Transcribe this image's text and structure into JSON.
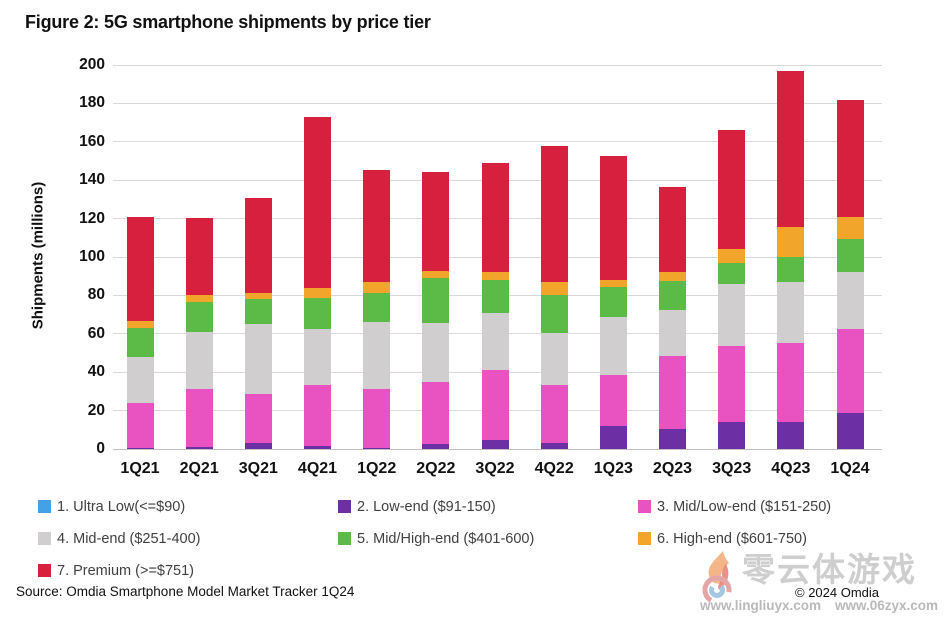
{
  "title": "Figure 2: 5G smartphone shipments by price tier",
  "source": "Source: Omdia Smartphone Model Market Tracker 1Q24",
  "copyright": "© 2024 Omdia",
  "watermark": {
    "logo": "flame-swirl-logo",
    "text": "零云体游戏",
    "url_1": "www.lingliuyx.com",
    "url_2": "www.06zyx.com"
  },
  "chart_data": {
    "type": "bar",
    "stacked": true,
    "title": "Figure 2: 5G smartphone shipments by price tier",
    "xlabel": "",
    "ylabel": "Shipments (millions)",
    "ylim": [
      0,
      200
    ],
    "ytick_step": 20,
    "grid": true,
    "legend_position": "bottom",
    "categories": [
      "1Q21",
      "2Q21",
      "3Q21",
      "4Q21",
      "1Q22",
      "2Q22",
      "3Q22",
      "4Q22",
      "1Q23",
      "2Q23",
      "3Q23",
      "4Q23",
      "1Q24"
    ],
    "series": [
      {
        "name": "1. Ultra Low(<=$90)",
        "color": "#44a1e4",
        "values": [
          0,
          0,
          0,
          0,
          0,
          0,
          0,
          0,
          0,
          0,
          0,
          0,
          0
        ]
      },
      {
        "name": "2. Low-end ($91-150)",
        "color": "#6d2fa4",
        "values": [
          0.5,
          1,
          3,
          1.5,
          0.5,
          2.5,
          4.5,
          3,
          12,
          10.5,
          14,
          14,
          19
        ]
      },
      {
        "name": "3. Mid/Low-end ($151-250)",
        "color": "#e852c1",
        "values": [
          23.5,
          30.5,
          25.5,
          32,
          30.5,
          32.5,
          36.5,
          30.5,
          26.5,
          38,
          39.5,
          41,
          43.5
        ]
      },
      {
        "name": "4. Mid-end ($251-400)",
        "color": "#d0cece",
        "values": [
          24,
          29.5,
          36.5,
          29,
          35,
          30.5,
          30,
          27,
          30,
          24,
          32.5,
          32,
          29.5
        ]
      },
      {
        "name": "5. Mid/High-end ($401-600)",
        "color": "#5cbb46",
        "values": [
          15,
          15.5,
          13,
          16,
          15.5,
          23.5,
          17,
          19.5,
          16,
          15,
          11,
          13,
          17.5
        ]
      },
      {
        "name": "6. High-end ($601-750)",
        "color": "#f2a52b",
        "values": [
          3.5,
          3.5,
          3.5,
          5.5,
          5.5,
          3.5,
          4,
          7,
          3.5,
          4.5,
          7,
          15.5,
          11.5
        ]
      },
      {
        "name": "7. Premium (>=$751)",
        "color": "#d7203d",
        "values": [
          54.5,
          40.5,
          49,
          89,
          58.5,
          52,
          57,
          71,
          64.5,
          44.5,
          62,
          81.5,
          61
        ]
      }
    ],
    "totals": [
      121,
      120.5,
      130.5,
      173,
      145.5,
      144.5,
      149,
      158,
      152.5,
      136.5,
      166,
      197,
      182
    ]
  }
}
